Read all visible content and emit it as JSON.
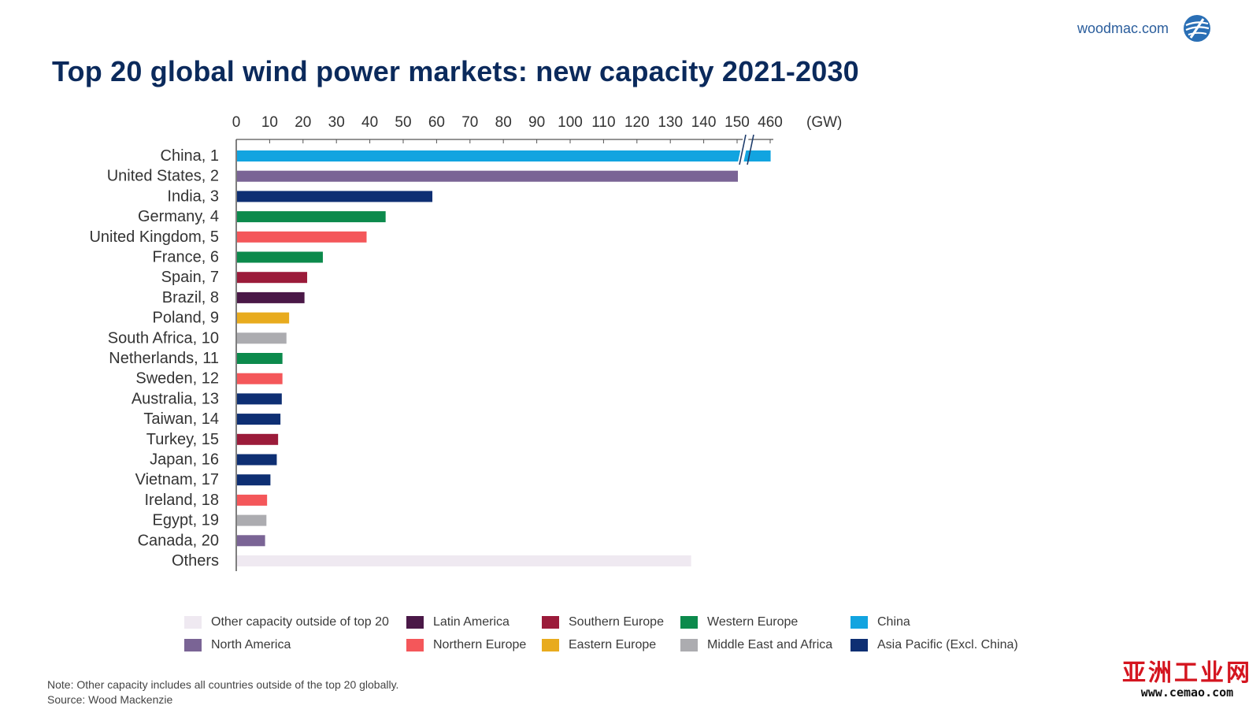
{
  "brand": {
    "site": "woodmac.com",
    "logo_icon": "woodmac-globe-logo"
  },
  "chart_data": {
    "type": "bar",
    "orientation": "horizontal",
    "title": "Top 20 global wind power markets: new capacity 2021-2030",
    "unit_label": "(GW)",
    "x_ticks": [
      "0",
      "10",
      "20",
      "30",
      "40",
      "50",
      "60",
      "70",
      "80",
      "90",
      "100",
      "110",
      "120",
      "130",
      "140",
      "150",
      "460"
    ],
    "axis_break": {
      "from": 150,
      "to": 460
    },
    "xlim": [
      0,
      160
    ],
    "grid": false,
    "categories": [
      "China, 1",
      "United States, 2",
      "India, 3",
      "Germany, 4",
      "United Kingdom, 5",
      "France, 6",
      "Spain, 7",
      "Brazil, 8",
      "Poland, 9",
      "South Africa, 10",
      "Netherlands, 11",
      "Sweden, 12",
      "Australia, 13",
      "Taiwan, 14",
      "Turkey, 15",
      "Japan, 16",
      "Vietnam, 17",
      "Ireland, 18",
      "Egypt, 19",
      "Canada, 20",
      "Others"
    ],
    "values": [
      455,
      150,
      58.5,
      44.5,
      38.8,
      25.7,
      21,
      20.2,
      15.6,
      14.8,
      13.6,
      13.6,
      13.4,
      13,
      12.3,
      11.9,
      10,
      9,
      8.8,
      8.4,
      136
    ],
    "regions": [
      "China",
      "North America",
      "Asia Pacific (Excl. China)",
      "Western Europe",
      "Northern Europe",
      "Western Europe",
      "Southern Europe",
      "Latin America",
      "Eastern Europe",
      "Middle East and Africa",
      "Western Europe",
      "Northern Europe",
      "Asia Pacific (Excl. China)",
      "Asia Pacific (Excl. China)",
      "Southern Europe",
      "Asia Pacific (Excl. China)",
      "Asia Pacific (Excl. China)",
      "Northern Europe",
      "Middle East and Africa",
      "North America",
      "Other capacity outside of top 20"
    ],
    "legend_position": "bottom",
    "legend": [
      {
        "name": "Other capacity outside of top 20",
        "color": "#efe9f1"
      },
      {
        "name": "Latin America",
        "color": "#4a1847"
      },
      {
        "name": "Southern Europe",
        "color": "#9b1b3a"
      },
      {
        "name": "Western Europe",
        "color": "#0c8a4c"
      },
      {
        "name": "China",
        "color": "#12a4e0"
      },
      {
        "name": "North America",
        "color": "#7a6495"
      },
      {
        "name": "Northern Europe",
        "color": "#f4575a"
      },
      {
        "name": "Eastern Europe",
        "color": "#e8ab1e"
      },
      {
        "name": "Middle East and Africa",
        "color": "#acacb0"
      },
      {
        "name": "Asia Pacific (Excl. China)",
        "color": "#0e2f73"
      }
    ]
  },
  "footnote": {
    "note": "Note: Other capacity includes all countries outside of the top 20 globally.",
    "source": "Source: Wood Mackenzie"
  },
  "watermark": {
    "main": "亚洲工业网",
    "sub": "www.cemao.com"
  }
}
